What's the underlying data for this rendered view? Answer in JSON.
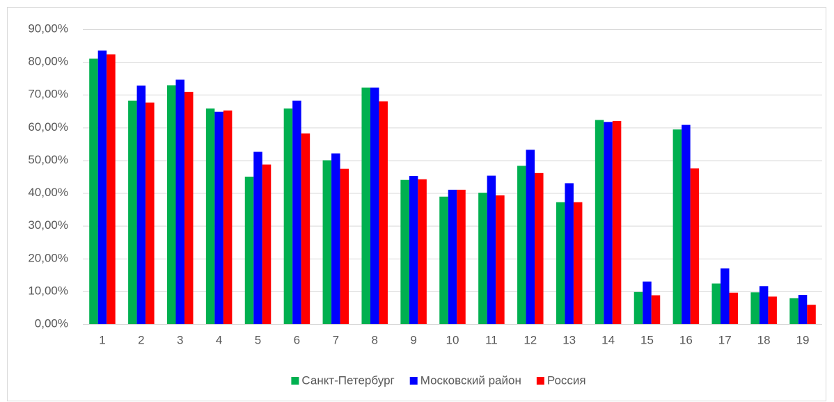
{
  "chart_data": {
    "type": "bar",
    "categories": [
      "1",
      "2",
      "3",
      "4",
      "5",
      "6",
      "7",
      "8",
      "9",
      "10",
      "11",
      "12",
      "13",
      "14",
      "15",
      "16",
      "17",
      "18",
      "19"
    ],
    "series": [
      {
        "name": "Санкт-Петербург",
        "color": "#00b050",
        "values": [
          81,
          68.2,
          72.9,
          65.8,
          45,
          65.8,
          50,
          72.2,
          44,
          38.9,
          40.1,
          48.3,
          37.2,
          62.3,
          9.8,
          59.4,
          12.4,
          9.7,
          7.9
        ]
      },
      {
        "name": "Московский район",
        "color": "#0000ff",
        "values": [
          83.5,
          72.8,
          74.6,
          64.8,
          52.6,
          68.2,
          52.1,
          72.2,
          45.2,
          41,
          45.3,
          53.2,
          43,
          61.7,
          13,
          60.8,
          17,
          11.6,
          8.9
        ]
      },
      {
        "name": "Россия",
        "color": "#ff0000",
        "values": [
          82.3,
          67.6,
          70.9,
          65.2,
          48.7,
          58.2,
          47.4,
          68,
          44.2,
          41,
          39.3,
          46.1,
          37.2,
          62,
          8.8,
          47.5,
          9.6,
          8.4,
          5.9
        ]
      }
    ],
    "ylim": [
      0,
      90
    ],
    "yticks": [
      {
        "value": 0,
        "label": "0,00%"
      },
      {
        "value": 10,
        "label": "10,00%"
      },
      {
        "value": 20,
        "label": "20,00%"
      },
      {
        "value": 30,
        "label": "30,00%"
      },
      {
        "value": 40,
        "label": "40,00%"
      },
      {
        "value": 50,
        "label": "50,00%"
      },
      {
        "value": 60,
        "label": "60,00%"
      },
      {
        "value": 70,
        "label": "70,00%"
      },
      {
        "value": 80,
        "label": "80,00%"
      },
      {
        "value": 90,
        "label": "90,00%"
      }
    ],
    "grid": true,
    "legend": "bottom"
  }
}
